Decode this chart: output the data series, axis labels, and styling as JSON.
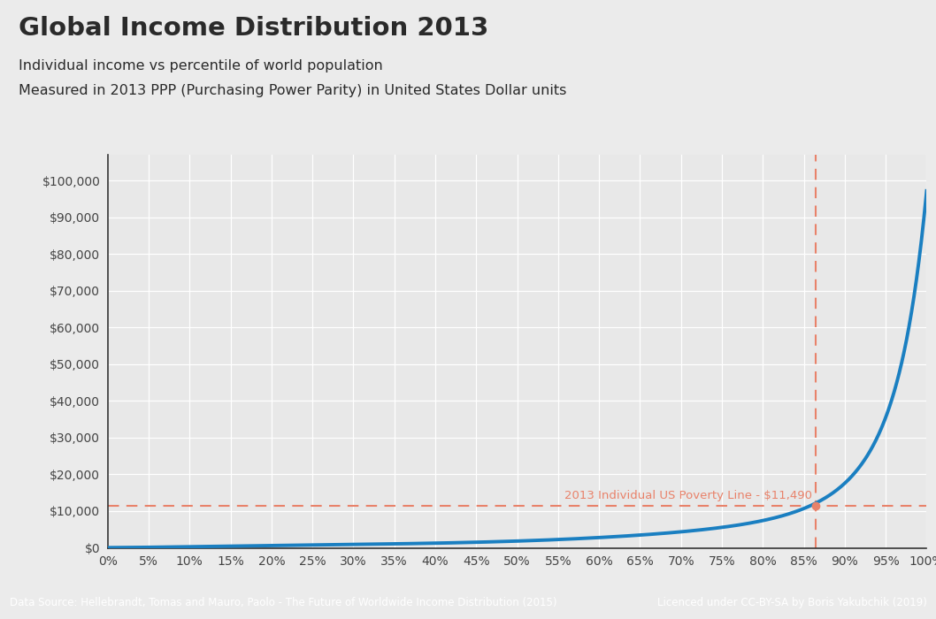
{
  "title": "Global Income Distribution 2013",
  "subtitle1": "Individual income vs percentile of world population",
  "subtitle2": "Measured in 2013 PPP (Purchasing Power Parity) in United States Dollar units",
  "footer_left": "Data Source: Hellebrandt, Tomas and Mauro, Paolo - The Future of Worldwide Income Distribution (2015)",
  "footer_right": "Licenced under CC-BY-SA by Boris Yakubchik (2019)",
  "poverty_line_value": 11490,
  "poverty_line_label": "2013 Individual US Poverty Line - $11,490",
  "poverty_line_percentile": 86.5,
  "ylim_max": 107000,
  "ytick_max": 100000,
  "ytick_step": 10000,
  "background_color": "#ebebeb",
  "plot_background": "#e8e8e8",
  "line_color": "#1a7fc1",
  "poverty_color": "#e8826a",
  "title_color": "#2a2a2a",
  "footer_bg": "#777777",
  "footer_text_color": "#ffffff",
  "grid_color": "#ffffff",
  "spine_color": "#333333"
}
